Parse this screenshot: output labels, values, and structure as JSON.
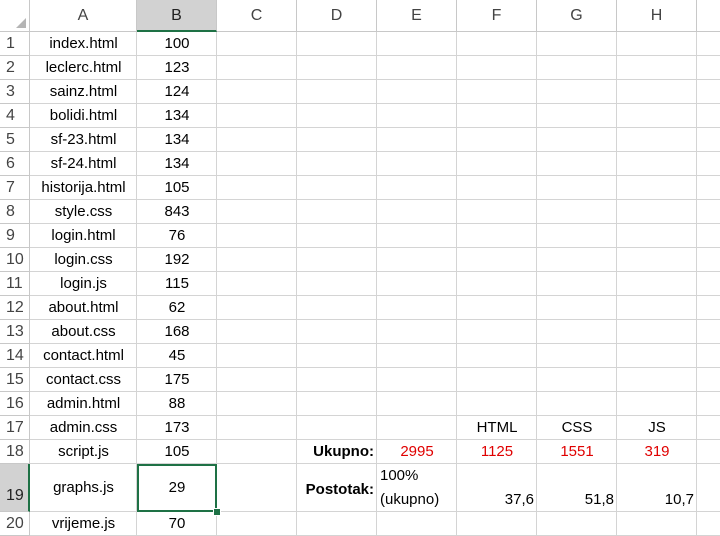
{
  "columns": [
    "A",
    "B",
    "C",
    "D",
    "E",
    "F",
    "G",
    "H"
  ],
  "rows": [
    "1",
    "2",
    "3",
    "4",
    "5",
    "6",
    "7",
    "8",
    "9",
    "10",
    "11",
    "12",
    "13",
    "14",
    "15",
    "16",
    "17",
    "18",
    "19",
    "20"
  ],
  "files": [
    {
      "name": "index.html",
      "value": "100"
    },
    {
      "name": "leclerc.html",
      "value": "123"
    },
    {
      "name": "sainz.html",
      "value": "124"
    },
    {
      "name": "bolidi.html",
      "value": "134"
    },
    {
      "name": "sf-23.html",
      "value": "134"
    },
    {
      "name": "sf-24.html",
      "value": "134"
    },
    {
      "name": "historija.html",
      "value": "105"
    },
    {
      "name": "style.css",
      "value": "843"
    },
    {
      "name": "login.html",
      "value": "76"
    },
    {
      "name": "login.css",
      "value": "192"
    },
    {
      "name": "login.js",
      "value": "115"
    },
    {
      "name": "about.html",
      "value": "62"
    },
    {
      "name": "about.css",
      "value": "168"
    },
    {
      "name": "contact.html",
      "value": "45"
    },
    {
      "name": "contact.css",
      "value": "175"
    },
    {
      "name": "admin.html",
      "value": "88"
    },
    {
      "name": "admin.css",
      "value": "173"
    },
    {
      "name": "script.js",
      "value": "105"
    },
    {
      "name": "graphs.js",
      "value": "29"
    },
    {
      "name": "vrijeme.js",
      "value": "70"
    }
  ],
  "summary": {
    "headers": {
      "html": "HTML",
      "css": "CSS",
      "js": "JS"
    },
    "total_label": "Ukupno:",
    "total": "2995",
    "html_total": "1125",
    "css_total": "1551",
    "js_total": "319",
    "percent_label": "Postotak:",
    "percent_total_line1": "100%",
    "percent_total_line2": "(ukupno)",
    "html_percent": "37,6",
    "css_percent": "51,8",
    "js_percent": "10,7"
  },
  "colors": {
    "accent": "#1e7145",
    "highlight_text": "#e00000"
  }
}
